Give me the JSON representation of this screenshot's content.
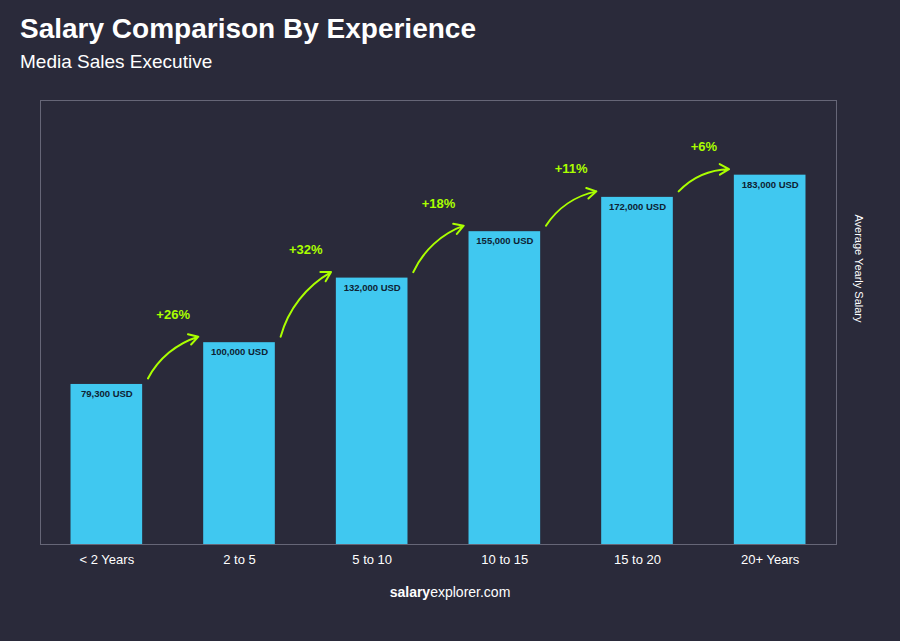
{
  "chart_data": {
    "type": "bar",
    "title": "Salary Comparison By Experience",
    "subtitle": "Media Sales Executive",
    "ylabel": "Average Yearly Salary",
    "categories": [
      "< 2 Years",
      "2 to 5",
      "5 to 10",
      "10 to 15",
      "15 to 20",
      "20+ Years"
    ],
    "values": [
      79300,
      100000,
      132000,
      155000,
      172000,
      183000
    ],
    "value_labels": [
      "79,300 USD",
      "100,000 USD",
      "132,000 USD",
      "155,000 USD",
      "172,000 USD",
      "183,000 USD"
    ],
    "data_labels": true,
    "annotations": [
      "+26%",
      "+32%",
      "+18%",
      "+11%",
      "+6%"
    ],
    "caption": [
      "salary",
      "explorer.com"
    ],
    "color": "#40C8F0",
    "ylim": [
      0,
      220000
    ],
    "tick_labels": "x",
    "grid": false
  }
}
